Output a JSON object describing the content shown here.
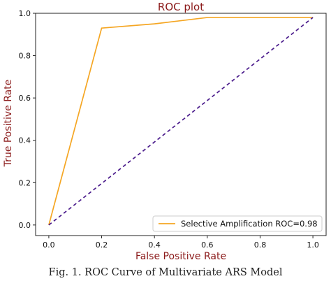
{
  "chart_data": {
    "type": "line",
    "title": "ROC plot",
    "xlabel": "False Positive Rate",
    "ylabel": "True Positive Rate",
    "xlim": [
      -0.05,
      1.05
    ],
    "ylim": [
      -0.05,
      1.0
    ],
    "x_ticks": [
      "0.0",
      "0.2",
      "0.4",
      "0.6",
      "0.8",
      "1.0"
    ],
    "y_ticks": [
      "0.0",
      "0.2",
      "0.4",
      "0.6",
      "0.8",
      "1.0"
    ],
    "series": [
      {
        "name": "Selective Amplification ROC=0.98",
        "color": "#f5a623",
        "style": "solid",
        "x": [
          0.0,
          0.2,
          0.4,
          0.6,
          1.0
        ],
        "y": [
          0.0,
          0.93,
          0.95,
          0.98,
          0.98
        ]
      },
      {
        "color": "#4b1c8c",
        "style": "dashed",
        "x": [
          0.0,
          1.0
        ],
        "y": [
          0.0,
          0.98
        ]
      }
    ],
    "legend_position": "bottom-right",
    "grid": false
  },
  "caption": "Fig. 1.   ROC Curve of Multivariate ARS Model"
}
